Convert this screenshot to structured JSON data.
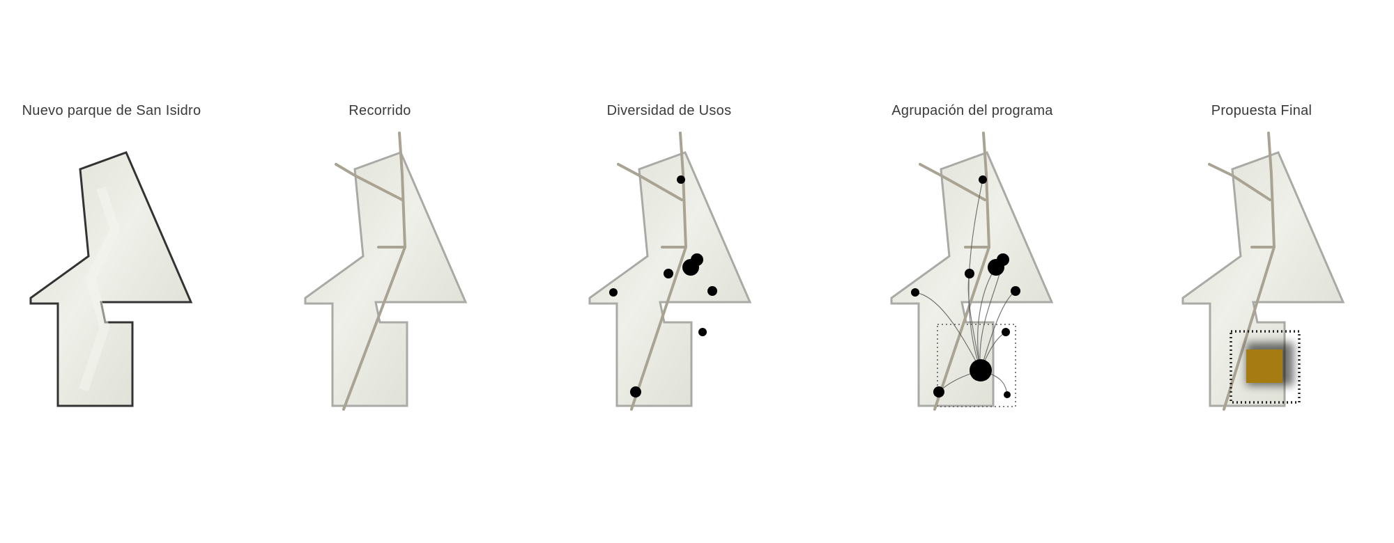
{
  "panels": [
    {
      "title": "Nuevo parque de San Isidro"
    },
    {
      "title": "Recorrido"
    },
    {
      "title": "Diversidad de Usos"
    },
    {
      "title": "Agrupación del programa"
    },
    {
      "title": "Propuesta Final"
    }
  ],
  "colors": {
    "site_fill": "#e6e8df",
    "outline_initial": "#333333",
    "outline_light": "#a9a9a5",
    "path": "#a8a393",
    "dots": "#000000",
    "final_block": "#a67c12"
  }
}
